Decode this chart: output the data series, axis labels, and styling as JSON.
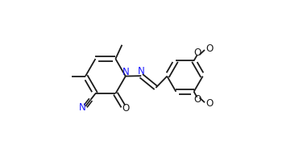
{
  "background_color": "#ffffff",
  "line_color": "#1a1a1a",
  "figsize": [
    3.66,
    1.85
  ],
  "dpi": 100,
  "bond_lw": 1.3,
  "font_size": 8.5,
  "xlim": [
    0.03,
    1.0
  ],
  "ylim": [
    0.08,
    0.95
  ]
}
